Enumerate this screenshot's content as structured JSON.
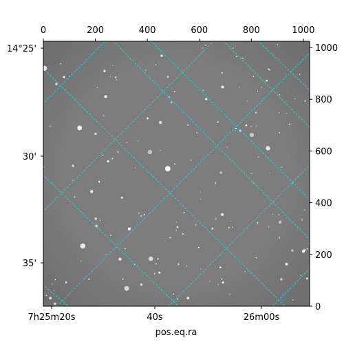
{
  "figure": {
    "xlabel": "pos.eq.ra",
    "colors": {
      "grid": "#00e5e5",
      "sky": "#6e6e6e",
      "star": "#ffffff",
      "frame": "#000000"
    },
    "top_axis": {
      "range": [
        0,
        1024
      ],
      "ticks": [
        {
          "value": 0,
          "label": "0"
        },
        {
          "value": 200,
          "label": "200"
        },
        {
          "value": 400,
          "label": "400"
        },
        {
          "value": 600,
          "label": "600"
        },
        {
          "value": 800,
          "label": "800"
        },
        {
          "value": 1000,
          "label": "1000"
        }
      ]
    },
    "right_axis": {
      "range": [
        0,
        1024
      ],
      "ticks": [
        {
          "value": 0,
          "label": "0"
        },
        {
          "value": 200,
          "label": "200"
        },
        {
          "value": 400,
          "label": "400"
        },
        {
          "value": 600,
          "label": "600"
        },
        {
          "value": 800,
          "label": "800"
        },
        {
          "value": 1000,
          "label": "1000"
        }
      ]
    },
    "left_axis": {
      "labels": [
        {
          "label": "14°25'"
        },
        {
          "label": "30'"
        },
        {
          "label": "35'"
        }
      ]
    },
    "bottom_axis": {
      "labels": [
        {
          "label": "7h25m20s"
        },
        {
          "label": "40s"
        },
        {
          "label": "26m00s"
        }
      ]
    }
  }
}
